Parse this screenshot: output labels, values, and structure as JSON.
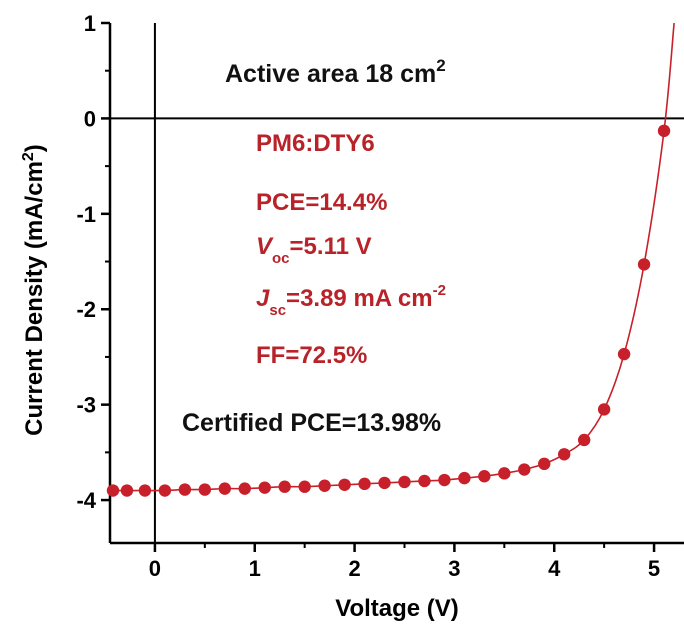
{
  "chart_data": {
    "type": "line",
    "xlabel": "Voltage (V)",
    "ylabel": "Current Density (mA/cm",
    "ylabel_sup": "2",
    "ylabel_close": ")",
    "xlim": [
      -0.45,
      5.3
    ],
    "ylim": [
      -4.45,
      1.0
    ],
    "xticks": [
      0,
      1,
      2,
      3,
      4,
      5
    ],
    "xtick_labels": [
      "0",
      "1",
      "2",
      "3",
      "4",
      "5"
    ],
    "yticks": [
      1,
      0,
      -1,
      -2,
      -3,
      -4
    ],
    "ytick_labels": [
      "1",
      "0",
      "-1",
      "-2",
      "-3",
      "-4"
    ],
    "grid": false,
    "series": [
      {
        "color": "#c8202a",
        "x": [
          -0.42,
          -0.28,
          -0.1,
          0.1,
          0.3,
          0.5,
          0.7,
          0.9,
          1.1,
          1.3,
          1.5,
          1.7,
          1.9,
          2.1,
          2.3,
          2.5,
          2.7,
          2.9,
          3.1,
          3.3,
          3.5,
          3.7,
          3.9,
          4.1,
          4.3,
          4.5,
          4.7,
          4.9,
          5.1
        ],
        "y": [
          -3.9,
          -3.9,
          -3.9,
          -3.9,
          -3.89,
          -3.89,
          -3.88,
          -3.88,
          -3.87,
          -3.86,
          -3.86,
          -3.85,
          -3.84,
          -3.83,
          -3.82,
          -3.81,
          -3.8,
          -3.79,
          -3.77,
          -3.75,
          -3.72,
          -3.68,
          -3.62,
          -3.52,
          -3.37,
          -3.05,
          -2.47,
          -1.53,
          -0.13
        ]
      }
    ]
  },
  "annotations": {
    "active_area_text": "Active area 18 cm",
    "active_area_sup": "2",
    "material": "PM6:DTY6",
    "pce": "PCE=14.4%",
    "voc_symbol": "V",
    "voc_sub": "oc",
    "voc_value": "=5.11 V",
    "jsc_symbol": "J",
    "jsc_sub": "sc",
    "jsc_value": "=3.89 mA cm",
    "jsc_sup": "-2",
    "ff": "FF=72.5%",
    "certified": "Certified PCE=13.98%"
  },
  "colors": {
    "data": "#c8202a",
    "annotation_red": "#b8232a",
    "axis": "#000000"
  }
}
